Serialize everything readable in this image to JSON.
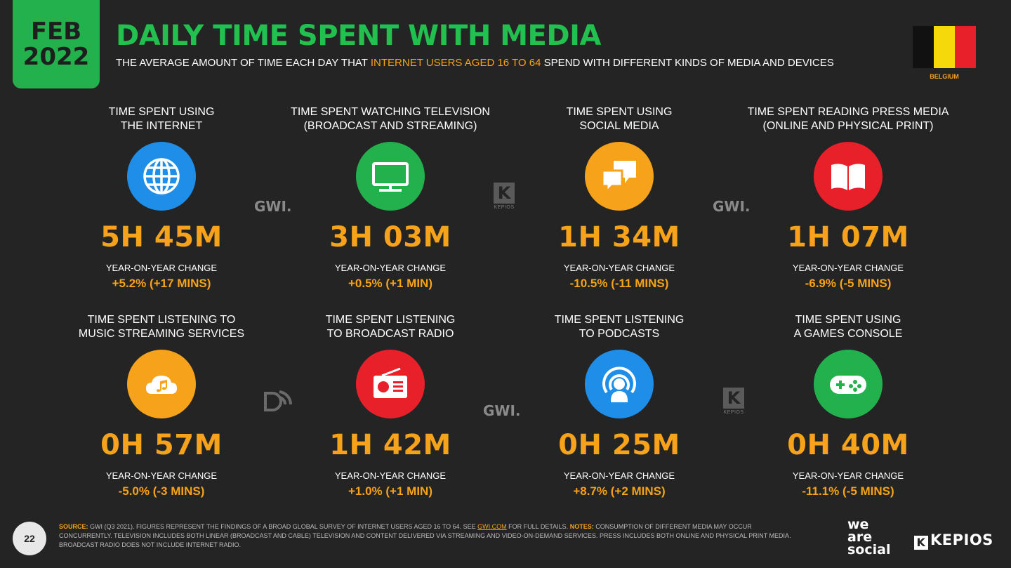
{
  "header": {
    "month": "FEB",
    "year": "2022",
    "title": "DAILY TIME SPENT WITH MEDIA",
    "subtitle_pre": "THE AVERAGE AMOUNT OF TIME EACH DAY THAT ",
    "subtitle_highlight": "INTERNET USERS AGED 16 TO 64",
    "subtitle_post": " SPEND WITH DIFFERENT KINDS OF MEDIA AND DEVICES"
  },
  "flag": {
    "label": "BELGIUM",
    "colors": [
      "#111111",
      "#f5d90a",
      "#e8202a"
    ]
  },
  "cards": [
    {
      "line1": "TIME SPENT USING",
      "line2": "THE INTERNET",
      "value": "5H 45M",
      "yoy_label": "YEAR-ON-YEAR CHANGE",
      "yoy_value": "+5.2% (+17 MINS)",
      "icon": "globe-icon",
      "color": "#1e8ee8"
    },
    {
      "line1": "TIME SPENT WATCHING TELEVISION",
      "line2": "(BROADCAST AND STREAMING)",
      "value": "3H 03M",
      "yoy_label": "YEAR-ON-YEAR CHANGE",
      "yoy_value": "+0.5% (+1 MIN)",
      "icon": "tv-icon",
      "color": "#22b14c"
    },
    {
      "line1": "TIME SPENT USING",
      "line2": "SOCIAL MEDIA",
      "value": "1H 34M",
      "yoy_label": "YEAR-ON-YEAR CHANGE",
      "yoy_value": "-10.5% (-11 MINS)",
      "icon": "chat-bubbles-icon",
      "color": "#f6a21a"
    },
    {
      "line1": "TIME SPENT READING PRESS MEDIA",
      "line2": "(ONLINE AND PHYSICAL PRINT)",
      "value": "1H 07M",
      "yoy_label": "YEAR-ON-YEAR CHANGE",
      "yoy_value": "-6.9% (-5 MINS)",
      "icon": "book-icon",
      "color": "#e8202a"
    },
    {
      "line1": "TIME SPENT LISTENING TO",
      "line2": "MUSIC STREAMING SERVICES",
      "value": "0H 57M",
      "yoy_label": "YEAR-ON-YEAR CHANGE",
      "yoy_value": "-5.0% (-3 MINS)",
      "icon": "music-cloud-icon",
      "color": "#f6a21a"
    },
    {
      "line1": "TIME SPENT LISTENING",
      "line2": "TO BROADCAST RADIO",
      "value": "1H 42M",
      "yoy_label": "YEAR-ON-YEAR CHANGE",
      "yoy_value": "+1.0% (+1 MIN)",
      "icon": "radio-icon",
      "color": "#e8202a"
    },
    {
      "line1": "TIME SPENT LISTENING",
      "line2": "TO PODCASTS",
      "value": "0H 25M",
      "yoy_label": "YEAR-ON-YEAR CHANGE",
      "yoy_value": "+8.7% (+2 MINS)",
      "icon": "podcast-icon",
      "color": "#1e8ee8"
    },
    {
      "line1": "TIME SPENT USING",
      "line2": "A GAMES CONSOLE",
      "value": "0H 40M",
      "yoy_label": "YEAR-ON-YEAR CHANGE",
      "yoy_value": "-11.1% (-5 MINS)",
      "icon": "gamepad-icon",
      "color": "#22b14c"
    }
  ],
  "watermarks": {
    "gwi": "GWI.",
    "kepios_small": "KEPIOS"
  },
  "footer": {
    "page_number": "22",
    "source_label": "SOURCE:",
    "source_text": " GWI (Q3 2021). FIGURES REPRESENT THE FINDINGS OF A BROAD GLOBAL SURVEY OF INTERNET USERS AGED 16 TO 64. SEE ",
    "source_link": "GWI.COM",
    "source_after": " FOR FULL DETAILS. ",
    "notes_label": "NOTES:",
    "notes_text": " CONSUMPTION OF DIFFERENT MEDIA MAY OCCUR CONCURRENTLY. TELEVISION INCLUDES BOTH LINEAR (BROADCAST AND CABLE) TELEVISION AND CONTENT DELIVERED VIA STREAMING AND VIDEO-ON-DEMAND SERVICES. PRESS INCLUDES BOTH ONLINE AND PHYSICAL PRINT MEDIA. BROADCAST RADIO DOES NOT INCLUDE INTERNET RADIO.",
    "logo_was_1": "we",
    "logo_was_2": "are",
    "logo_was_3": "social",
    "logo_kepios": "KEPIOS"
  }
}
